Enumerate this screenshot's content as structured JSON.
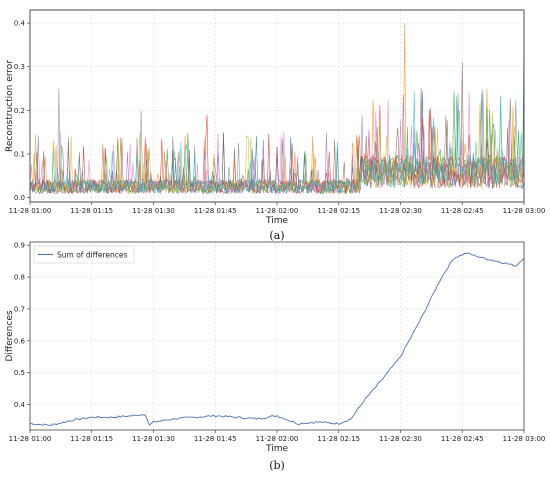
{
  "chart_data": [
    {
      "panel": "(a)",
      "type": "line",
      "xlabel": "Time",
      "ylabel": "Reconstruction error",
      "xlim": [
        "11-28 01:00",
        "11-28 03:00"
      ],
      "xticks": [
        "11-28 01:00",
        "11-28 01:15",
        "11-28 01:30",
        "11-28 01:45",
        "11-28 02:00",
        "11-28 02:15",
        "11-28 02:30",
        "11-28 02:45",
        "11-28 03:00"
      ],
      "ylim": [
        -0.01,
        0.43
      ],
      "yticks": [
        "0.0",
        "0.1",
        "0.2",
        "0.3",
        "0.4"
      ],
      "grid": true,
      "series_colors": [
        "#1f77b4",
        "#ff7f0e",
        "#2ca02c",
        "#d62728",
        "#9467bd",
        "#8c564b",
        "#e377c2",
        "#7f7f7f",
        "#bcbd22",
        "#17becf"
      ],
      "series_count_estimate": 10,
      "regimes": [
        {
          "from": "11-28 01:00",
          "to": "11-28 02:20",
          "typical": 0.03,
          "spike_max": 0.25
        },
        {
          "from": "11-28 02:20",
          "to": "11-28 03:00",
          "typical": 0.07,
          "spike_max": 0.4
        }
      ],
      "peaks": [
        {
          "x": "11-28 01:07",
          "y": 0.25
        },
        {
          "x": "11-28 01:27",
          "y": 0.2
        },
        {
          "x": "11-28 01:43",
          "y": 0.19
        },
        {
          "x": "11-28 02:31",
          "y": 0.4
        },
        {
          "x": "11-28 02:35",
          "y": 0.25
        },
        {
          "x": "11-28 02:45",
          "y": 0.31
        },
        {
          "x": "11-28 02:51",
          "y": 0.25
        },
        {
          "x": "11-28 03:00",
          "y": 0.4
        }
      ]
    },
    {
      "panel": "(b)",
      "type": "line",
      "xlabel": "Time",
      "ylabel": "Differences",
      "xlim": [
        "11-28 01:00",
        "11-28 03:00"
      ],
      "xticks": [
        "11-28 01:00",
        "11-28 01:15",
        "11-28 01:30",
        "11-28 01:45",
        "11-28 02:00",
        "11-28 02:15",
        "11-28 02:30",
        "11-28 02:45",
        "11-28 03:00"
      ],
      "ylim": [
        0.32,
        0.91
      ],
      "yticks": [
        "0.4",
        "0.5",
        "0.6",
        "0.7",
        "0.8",
        "0.9"
      ],
      "grid": true,
      "legend": "top-left",
      "series": [
        {
          "name": "Sum of differences",
          "color": "#4c72b0",
          "x": [
            "11-28 01:00",
            "11-28 01:05",
            "11-28 01:10",
            "11-28 01:15",
            "11-28 01:20",
            "11-28 01:25",
            "11-28 01:28",
            "11-28 01:29",
            "11-28 01:30",
            "11-28 01:35",
            "11-28 01:40",
            "11-28 01:45",
            "11-28 01:50",
            "11-28 01:55",
            "11-28 02:00",
            "11-28 02:05",
            "11-28 02:10",
            "11-28 02:15",
            "11-28 02:18",
            "11-28 02:21",
            "11-28 02:25",
            "11-28 02:30",
            "11-28 02:35",
            "11-28 02:40",
            "11-28 02:43",
            "11-28 02:46",
            "11-28 02:50",
            "11-28 02:55",
            "11-28 02:58",
            "11-28 03:00"
          ],
          "values": [
            0.34,
            0.335,
            0.35,
            0.36,
            0.36,
            0.365,
            0.37,
            0.335,
            0.345,
            0.355,
            0.36,
            0.365,
            0.36,
            0.355,
            0.365,
            0.34,
            0.345,
            0.34,
            0.355,
            0.41,
            0.47,
            0.55,
            0.67,
            0.8,
            0.86,
            0.875,
            0.86,
            0.845,
            0.835,
            0.86
          ]
        }
      ]
    }
  ],
  "captions": {
    "a": "(a)",
    "b": "(b)"
  }
}
